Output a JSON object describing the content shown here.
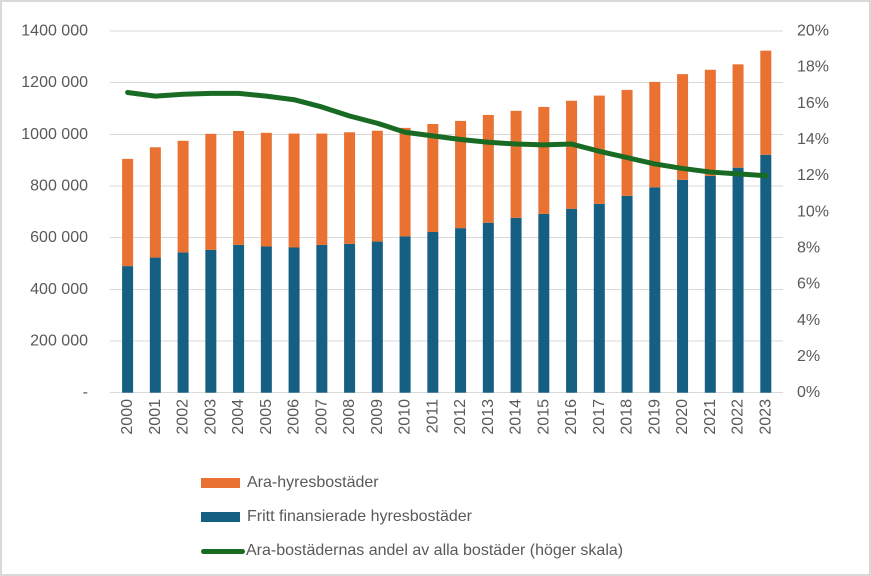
{
  "canvas": {
    "background": "#FFFFFF",
    "border_color": "#D9D9D9",
    "text_color": "#595959",
    "grid_color": "#D9D9D9"
  },
  "chart_data": {
    "type": "bar",
    "subtype": "stacked-bars-with-line",
    "title": "",
    "grid": true,
    "legend_position": "bottom-left",
    "categories": [
      "2000",
      "2001",
      "2002",
      "2003",
      "2004",
      "2005",
      "2006",
      "2007",
      "2008",
      "2009",
      "2010",
      "2011",
      "2012",
      "2013",
      "2014",
      "2015",
      "2016",
      "2017",
      "2018",
      "2019",
      "2020",
      "2021",
      "2022",
      "2023"
    ],
    "series": [
      {
        "name": "Ara-hyresbostäder",
        "type": "bar",
        "axis": "left",
        "color": "#E97132",
        "values": [
          415000,
          427000,
          432000,
          449000,
          441000,
          440000,
          441000,
          431000,
          432000,
          429000,
          420000,
          418000,
          415000,
          417000,
          414000,
          414000,
          418000,
          419000,
          410000,
          408000,
          409000,
          411000,
          400000,
          403000
        ]
      },
      {
        "name": "Fritt finansierade hyresbostäder",
        "type": "bar",
        "axis": "left",
        "color": "#156082",
        "values": [
          490000,
          523000,
          543000,
          553000,
          572000,
          566000,
          562000,
          572000,
          576000,
          585000,
          605000,
          622000,
          637000,
          658000,
          677000,
          692000,
          712000,
          731000,
          762000,
          795000,
          824000,
          839000,
          871000,
          921000
        ]
      },
      {
        "name": "Ara-bostädernas andel av alla bostäder (höger skala)",
        "type": "line",
        "axis": "right",
        "color": "#196B24",
        "values_percent": [
          16.6,
          16.4,
          16.5,
          16.55,
          16.55,
          16.4,
          16.2,
          15.8,
          15.3,
          14.9,
          14.4,
          14.2,
          14.0,
          13.85,
          13.75,
          13.7,
          13.75,
          13.35,
          13.0,
          12.65,
          12.4,
          12.2,
          12.1,
          12.0
        ]
      }
    ],
    "left_axis": {
      "min": 0,
      "max": 1400000,
      "step": 200000,
      "tick_labels_top_to_bottom": [
        "1400 000",
        "1200 000",
        "1000 000",
        "800 000",
        "600 000",
        "400 000",
        "200 000",
        "-"
      ]
    },
    "right_axis": {
      "min": 0,
      "max": 20,
      "step": 2,
      "tick_labels_top_to_bottom": [
        "20%",
        "18%",
        "16%",
        "14%",
        "12%",
        "10%",
        "8%",
        "6%",
        "4%",
        "2%",
        "0%"
      ]
    }
  }
}
